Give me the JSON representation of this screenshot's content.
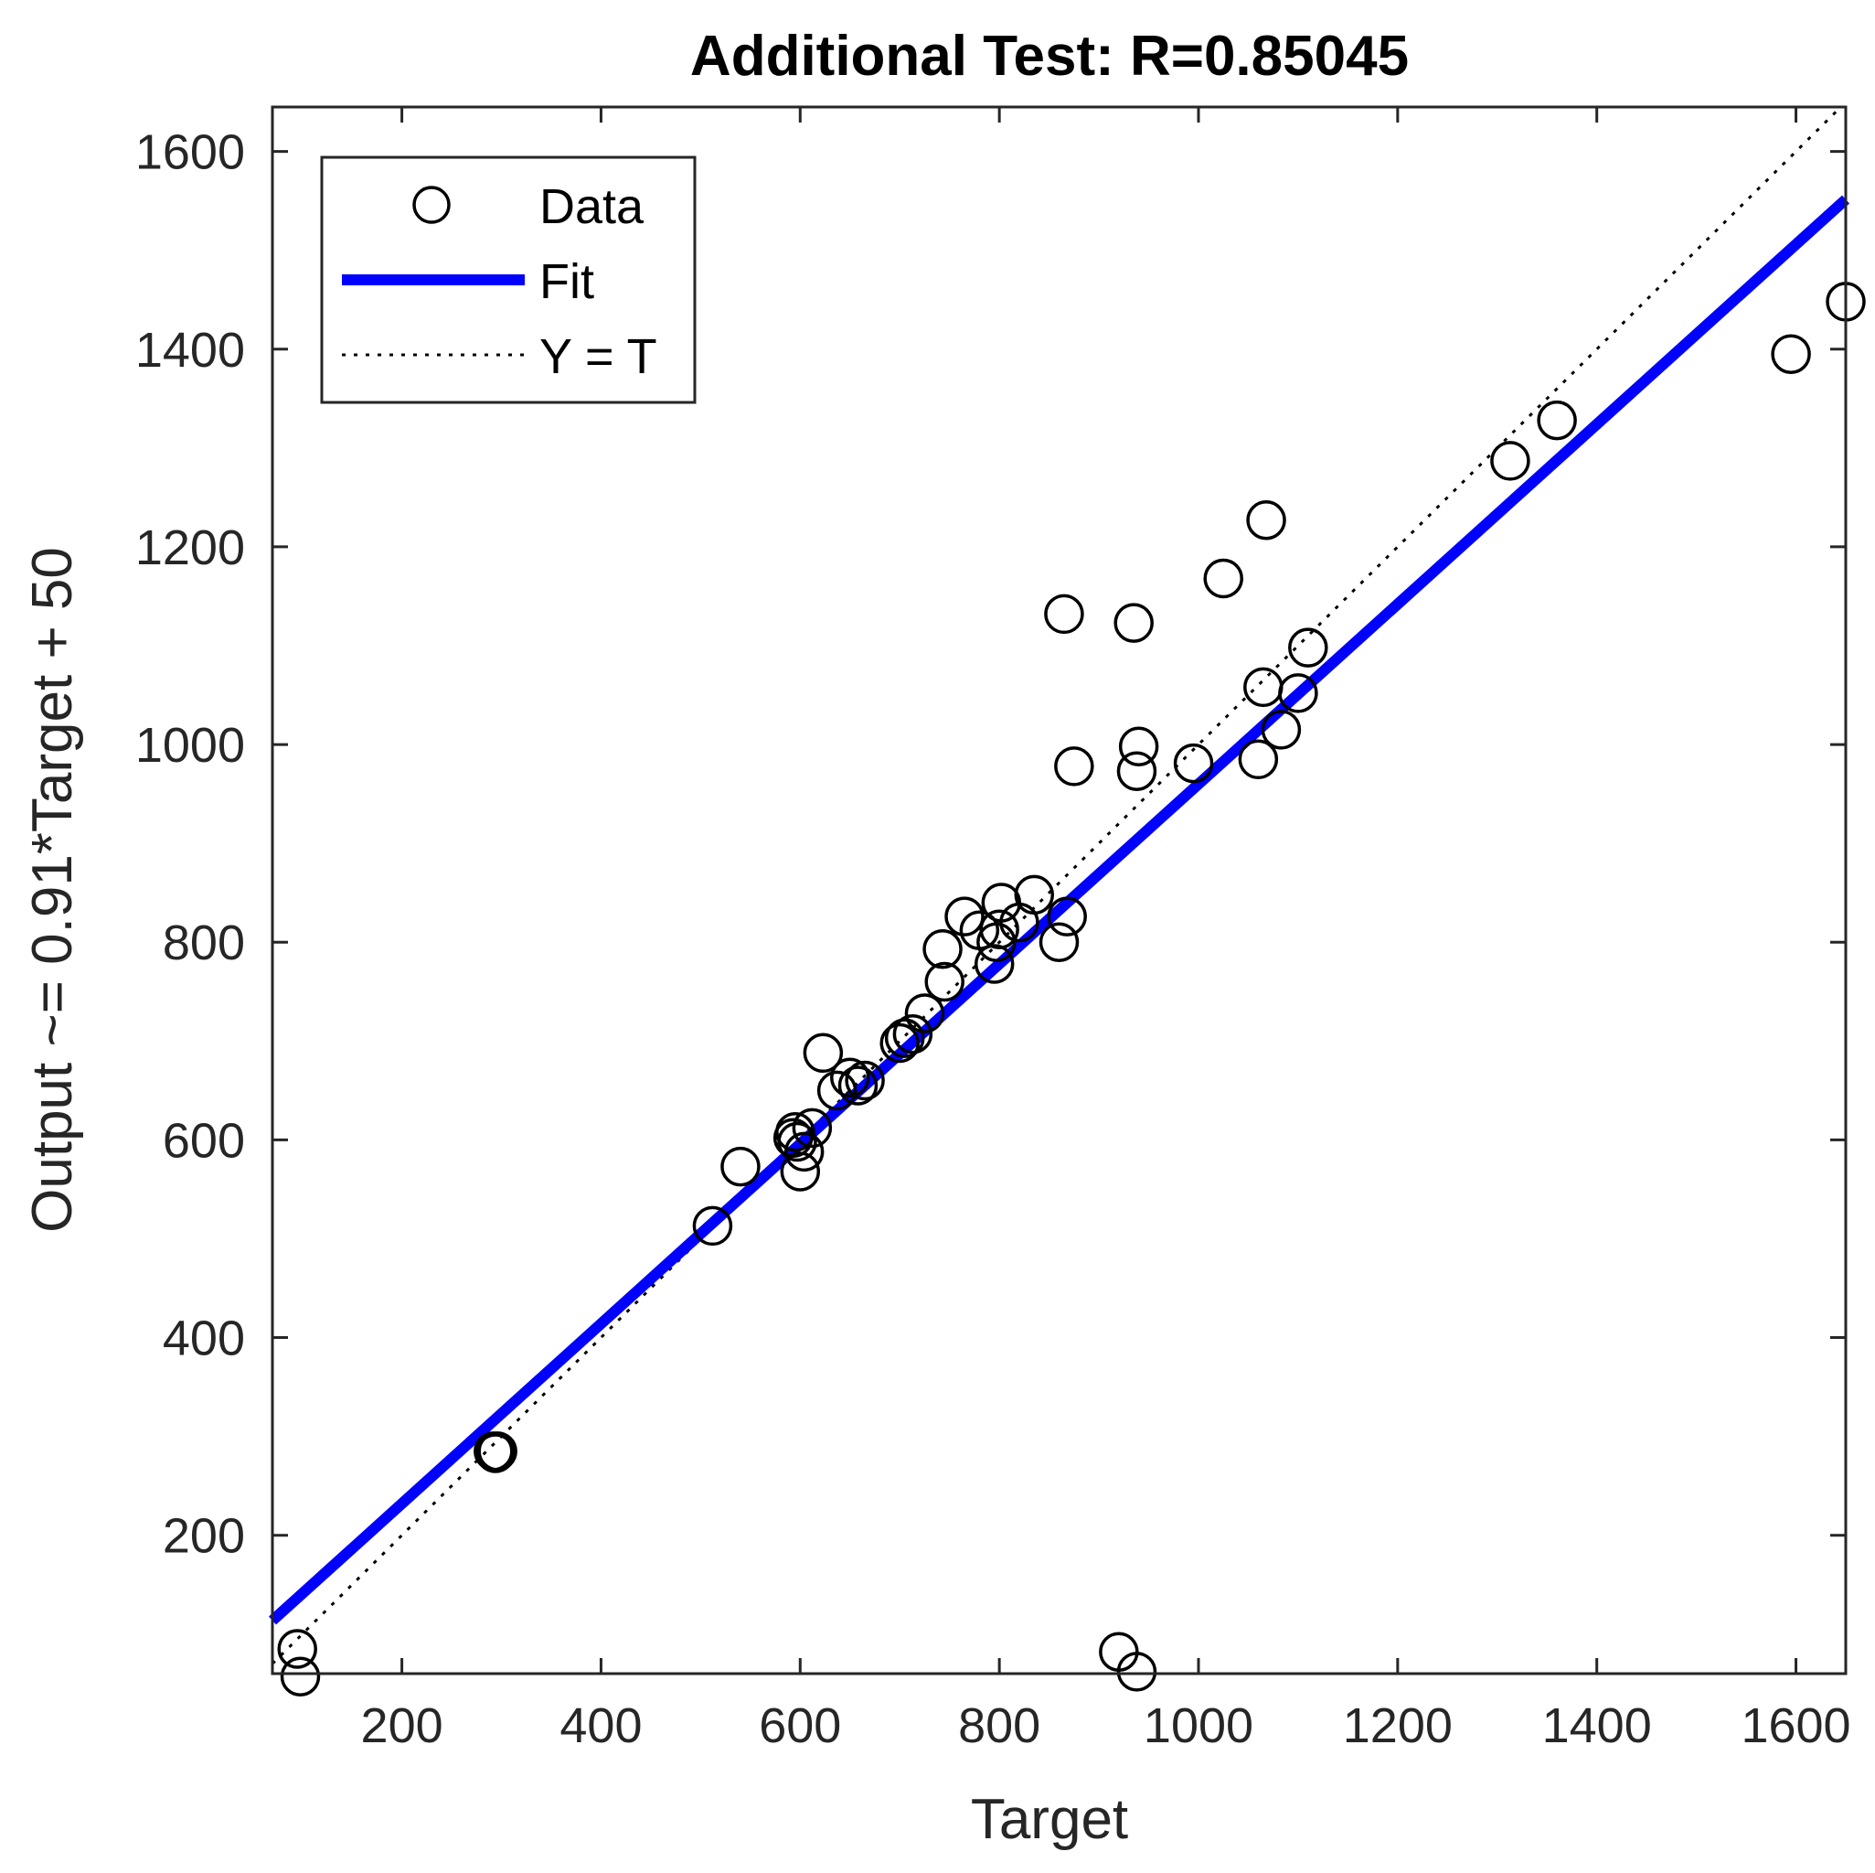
{
  "chart_data": {
    "type": "scatter",
    "title": "Additional Test: R=0.85045",
    "xlabel": "Target",
    "ylabel": "Output ~= 0.91*Target + 50",
    "xlim": [
      70,
      1650
    ],
    "ylim": [
      60,
      1645
    ],
    "xticks": [
      200,
      400,
      600,
      800,
      1000,
      1200,
      1400,
      1600
    ],
    "yticks": [
      200,
      400,
      600,
      800,
      1000,
      1200,
      1400,
      1600
    ],
    "grid": false,
    "legend_position": "top-left",
    "legend": {
      "data": "Data",
      "fit": "Fit",
      "identity": "Y = T"
    },
    "fit": {
      "slope": 0.91,
      "intercept": 50,
      "color": "#0000ff"
    },
    "identity_color": "#000000",
    "marker_color": "#000000",
    "series": [
      {
        "name": "Data",
        "points": [
          [
            95,
            85
          ],
          [
            98,
            57
          ],
          [
            292,
            285
          ],
          [
            294,
            283
          ],
          [
            296,
            285
          ],
          [
            512,
            513
          ],
          [
            540,
            573
          ],
          [
            593,
            602
          ],
          [
            595,
            608
          ],
          [
            597,
            598
          ],
          [
            600,
            568
          ],
          [
            604,
            588
          ],
          [
            612,
            612
          ],
          [
            623,
            688
          ],
          [
            637,
            650
          ],
          [
            650,
            663
          ],
          [
            658,
            655
          ],
          [
            665,
            660
          ],
          [
            700,
            698
          ],
          [
            705,
            703
          ],
          [
            713,
            707
          ],
          [
            725,
            728
          ],
          [
            743,
            793
          ],
          [
            745,
            760
          ],
          [
            765,
            826
          ],
          [
            780,
            812
          ],
          [
            795,
            778
          ],
          [
            797,
            800
          ],
          [
            800,
            813
          ],
          [
            802,
            840
          ],
          [
            820,
            820
          ],
          [
            835,
            848
          ],
          [
            860,
            800
          ],
          [
            868,
            826
          ],
          [
            865,
            1132
          ],
          [
            875,
            978
          ],
          [
            920,
            82
          ],
          [
            938,
            62
          ],
          [
            935,
            1123
          ],
          [
            940,
            998
          ],
          [
            938,
            973
          ],
          [
            995,
            981
          ],
          [
            1025,
            1168
          ],
          [
            1060,
            985
          ],
          [
            1065,
            1058
          ],
          [
            1068,
            1227
          ],
          [
            1083,
            1015
          ],
          [
            1100,
            1052
          ],
          [
            1110,
            1098
          ],
          [
            1313,
            1287
          ],
          [
            1360,
            1328
          ],
          [
            1595,
            1395
          ],
          [
            1650,
            1448
          ]
        ]
      }
    ]
  }
}
